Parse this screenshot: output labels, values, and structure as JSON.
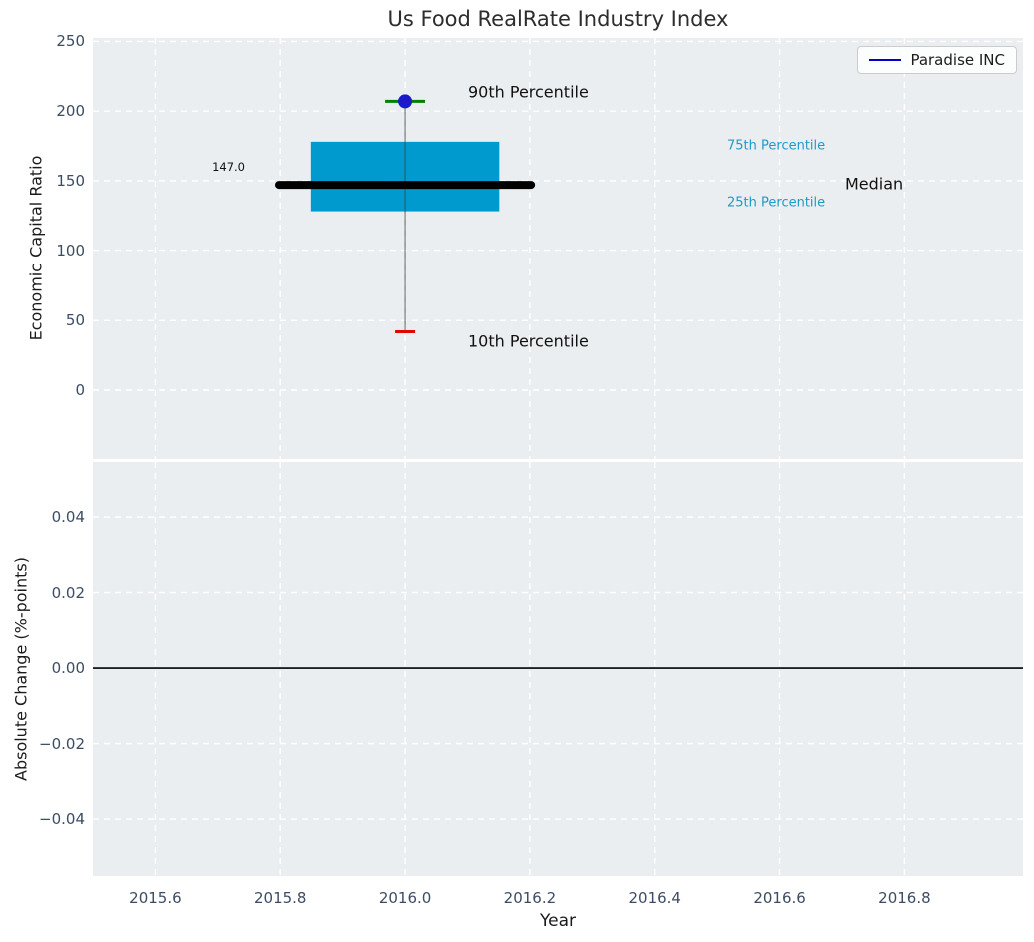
{
  "title": "Us Food RealRate Industry Index",
  "legend": {
    "label": "Paradise INC",
    "line_color": "#0000cc"
  },
  "colors": {
    "axes_background": "#ebeef0",
    "grid": "#ffffff",
    "tick_label": "#3d4c63",
    "box_fill": "#009ace",
    "median_line": "#000000",
    "whisker": "#444444",
    "p90_cap": "#008000",
    "p10_cap": "#e10600",
    "p90_marker": "#1a1ac8",
    "annotation_cyan": "#1e9ac8",
    "zero_line": "#000000"
  },
  "chart_data": [
    {
      "type": "box",
      "title": "Us Food RealRate Industry Index",
      "ylabel": "Economic Capital Ratio",
      "series_name": "Paradise INC",
      "x_center": 2016.0,
      "values": {
        "p10": 42,
        "p25": 128,
        "median": 147,
        "p75": 178,
        "p90": 207
      },
      "median_value_label": "147.0",
      "annotations": {
        "p90": "90th Percentile",
        "p75": "75th Percentile",
        "median": "Median",
        "p25": "25th Percentile",
        "p10": "10th Percentile"
      },
      "yticks": {
        "values": [
          250,
          200,
          150,
          100,
          50,
          0
        ],
        "labels": [
          "250",
          "200",
          "150",
          "100",
          "50",
          "0"
        ]
      },
      "xlim": [
        2015.5,
        2016.99
      ],
      "ylim": [
        -49.5,
        252.5
      ],
      "grid": true,
      "legend_position": "upper right"
    },
    {
      "type": "line",
      "ylabel": "Absolute Change (%-points)",
      "xlabel": "Year",
      "yticks": {
        "values": [
          0.04,
          0.02,
          0,
          -0.02,
          -0.04
        ],
        "labels": [
          "0.04",
          "0.02",
          "0.00",
          "−0.02",
          "−0.04"
        ]
      },
      "xticks": {
        "values": [
          2015.6,
          2015.8,
          2016.0,
          2016.2,
          2016.4,
          2016.6,
          2016.8
        ],
        "labels": [
          "2015.6",
          "2015.8",
          "2016.0",
          "2016.2",
          "2016.4",
          "2016.6",
          "2016.8"
        ]
      },
      "zero_line": 0,
      "xlim": [
        2015.5,
        2016.99
      ],
      "ylim": [
        -0.0551,
        0.0546
      ],
      "grid": true
    }
  ]
}
